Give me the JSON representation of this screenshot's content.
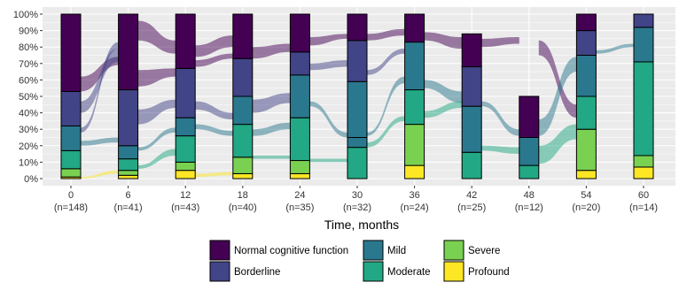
{
  "chart_data": {
    "type": "bar",
    "subtype": "stacked-proportion-alluvial",
    "xlabel": "Time, months",
    "ylabel": "",
    "ylim": [
      0,
      100
    ],
    "y_ticks": [
      "0%",
      "10%",
      "20%",
      "30%",
      "40%",
      "50%",
      "60%",
      "70%",
      "80%",
      "90%",
      "100%"
    ],
    "grid": true,
    "legend_position": "bottom",
    "categories": [
      "0",
      "6",
      "12",
      "18",
      "24",
      "30",
      "36",
      "42",
      "48",
      "54",
      "60"
    ],
    "sample_sizes": [
      "(n=148)",
      "(n=41)",
      "(n=43)",
      "(n=40)",
      "(n=35)",
      "(n=32)",
      "(n=24)",
      "(n=25)",
      "(n=12)",
      "(n=20)",
      "(n=14)"
    ],
    "series": [
      {
        "name": "Profound",
        "color": "#FDE725",
        "values": [
          1,
          2,
          5,
          3,
          3,
          0,
          8,
          0,
          0,
          5,
          7
        ]
      },
      {
        "name": "Severe",
        "color": "#7AD151",
        "values": [
          5,
          3,
          5,
          10,
          8,
          0,
          25,
          0,
          0,
          25,
          7
        ]
      },
      {
        "name": "Moderate",
        "color": "#22A884",
        "values": [
          11,
          7,
          16,
          20,
          26,
          19,
          21,
          16,
          8,
          20,
          57
        ]
      },
      {
        "name": "Mild",
        "color": "#2A788E",
        "values": [
          15,
          8,
          11,
          17,
          26,
          6,
          0,
          28,
          17,
          0,
          0
        ]
      },
      {
        "name": "Mild",
        "color": "#2A788E",
        "values": [
          0,
          0,
          0,
          0,
          0,
          34,
          29,
          0,
          0,
          25,
          21
        ]
      },
      {
        "name": "Borderline",
        "color": "#414487",
        "values": [
          21,
          34,
          30,
          23,
          14,
          25,
          0,
          24,
          0,
          15,
          8
        ]
      },
      {
        "name": "Normal cognitive function",
        "color": "#440154",
        "values": [
          47,
          46,
          33,
          27,
          23,
          16,
          17,
          20,
          25,
          10,
          0
        ]
      }
    ],
    "legend": [
      {
        "name": "Normal cognitive function",
        "color": "#440154"
      },
      {
        "name": "Borderline",
        "color": "#414487"
      },
      {
        "name": "Mild",
        "color": "#2A788E"
      },
      {
        "name": "Moderate",
        "color": "#22A884"
      },
      {
        "name": "Severe",
        "color": "#7AD151"
      },
      {
        "name": "Profound",
        "color": "#FDE725"
      }
    ],
    "flows": [
      {
        "from": 0,
        "y0a": 53,
        "y0b": 62,
        "y1a": 69,
        "y1b": 74,
        "color": "#440154"
      },
      {
        "from": 0,
        "y0a": 40,
        "y0b": 47,
        "y1a": 71,
        "y1b": 79,
        "color": "#414487"
      },
      {
        "from": 0,
        "y0a": 28,
        "y0b": 31,
        "y1a": 79,
        "y1b": 83,
        "color": "#414487"
      },
      {
        "from": 0,
        "y0a": 20,
        "y0b": 23,
        "y1a": 22,
        "y1b": 25,
        "color": "#2A788E"
      },
      {
        "from": 0,
        "y0a": 0,
        "y0b": 1,
        "y1a": 3,
        "y1b": 5,
        "color": "#FDE725"
      },
      {
        "from": 1,
        "y0a": 56,
        "y0b": 66,
        "y1a": 62,
        "y1b": 67,
        "color": "#440154"
      },
      {
        "from": 1,
        "y0a": 84,
        "y0b": 96,
        "y1a": 76,
        "y1b": 84,
        "color": "#440154"
      },
      {
        "from": 1,
        "y0a": 33,
        "y0b": 42,
        "y1a": 43,
        "y1b": 48,
        "color": "#414487"
      },
      {
        "from": 1,
        "y0a": 17,
        "y0b": 19,
        "y1a": 28,
        "y1b": 31,
        "color": "#2A788E"
      },
      {
        "from": 1,
        "y0a": 6,
        "y0b": 8,
        "y1a": 14,
        "y1b": 18,
        "color": "#22A884"
      },
      {
        "from": 2,
        "y0a": 74,
        "y0b": 81,
        "y1a": 80,
        "y1b": 87,
        "color": "#440154"
      },
      {
        "from": 2,
        "y0a": 68,
        "y0b": 72,
        "y1a": 73,
        "y1b": 76,
        "color": "#440154"
      },
      {
        "from": 2,
        "y0a": 42,
        "y0b": 47,
        "y1a": 36,
        "y1b": 40,
        "color": "#414487"
      },
      {
        "from": 2,
        "y0a": 30,
        "y0b": 33,
        "y1a": 26,
        "y1b": 29,
        "color": "#2A788E"
      },
      {
        "from": 2,
        "y0a": 1,
        "y0b": 3,
        "y1a": 2,
        "y1b": 4,
        "color": "#FDE725"
      },
      {
        "from": 3,
        "y0a": 73,
        "y0b": 80,
        "y1a": 77,
        "y1b": 82,
        "color": "#440154"
      },
      {
        "from": 3,
        "y0a": 40,
        "y0b": 48,
        "y1a": 46,
        "y1b": 52,
        "color": "#414487"
      },
      {
        "from": 3,
        "y0a": 26,
        "y0b": 30,
        "y1a": 30,
        "y1b": 34,
        "color": "#2A788E"
      },
      {
        "from": 3,
        "y0a": 12,
        "y0b": 14,
        "y1a": 12,
        "y1b": 14,
        "color": "#22A884"
      },
      {
        "from": 4,
        "y0a": 81,
        "y0b": 86,
        "y1a": 85,
        "y1b": 88,
        "color": "#440154"
      },
      {
        "from": 4,
        "y0a": 66,
        "y0b": 70,
        "y1a": 68,
        "y1b": 72,
        "color": "#414487"
      },
      {
        "from": 4,
        "y0a": 44,
        "y0b": 47,
        "y1a": 25,
        "y1b": 28,
        "color": "#2A788E"
      },
      {
        "from": 4,
        "y0a": 10,
        "y0b": 12,
        "y1a": 10,
        "y1b": 12,
        "color": "#22A884"
      },
      {
        "from": 5,
        "y0a": 84,
        "y0b": 88,
        "y1a": 87,
        "y1b": 91,
        "color": "#440154"
      },
      {
        "from": 5,
        "y0a": 63,
        "y0b": 66,
        "y1a": 76,
        "y1b": 79,
        "color": "#414487"
      },
      {
        "from": 5,
        "y0a": 26,
        "y0b": 28,
        "y1a": 58,
        "y1b": 62,
        "color": "#2A788E"
      },
      {
        "from": 5,
        "y0a": 19,
        "y0b": 22,
        "y1a": 35,
        "y1b": 38,
        "color": "#22A884"
      },
      {
        "from": 6,
        "y0a": 84,
        "y0b": 89,
        "y1a": 79,
        "y1b": 86,
        "color": "#440154"
      },
      {
        "from": 6,
        "y0a": 55,
        "y0b": 60,
        "y1a": 46,
        "y1b": 53,
        "color": "#2A788E"
      },
      {
        "from": 6,
        "y0a": 37,
        "y0b": 41,
        "y1a": 43,
        "y1b": 47,
        "color": "#22A884"
      },
      {
        "from": 7,
        "y0a": 80,
        "y0b": 85,
        "y1a": 82,
        "y1b": 86,
        "color": "#440154"
      },
      {
        "from": 7,
        "y0a": 44,
        "y0b": 47,
        "y1a": 26,
        "y1b": 30,
        "color": "#2A788E"
      },
      {
        "from": 7,
        "y0a": 17,
        "y0b": 20,
        "y1a": 15,
        "y1b": 19,
        "color": "#22A884"
      },
      {
        "from": 8,
        "y0a": 75,
        "y0b": 84,
        "y1a": 37,
        "y1b": 45,
        "color": "#440154"
      },
      {
        "from": 8,
        "y0a": 26,
        "y0b": 36,
        "y1a": 65,
        "y1b": 74,
        "color": "#2A788E"
      },
      {
        "from": 8,
        "y0a": 9,
        "y0b": 20,
        "y1a": 24,
        "y1b": 33,
        "color": "#22A884"
      },
      {
        "from": 9,
        "y0a": 76,
        "y0b": 78,
        "y1a": 80,
        "y1b": 82,
        "color": "#2A788E"
      }
    ]
  }
}
